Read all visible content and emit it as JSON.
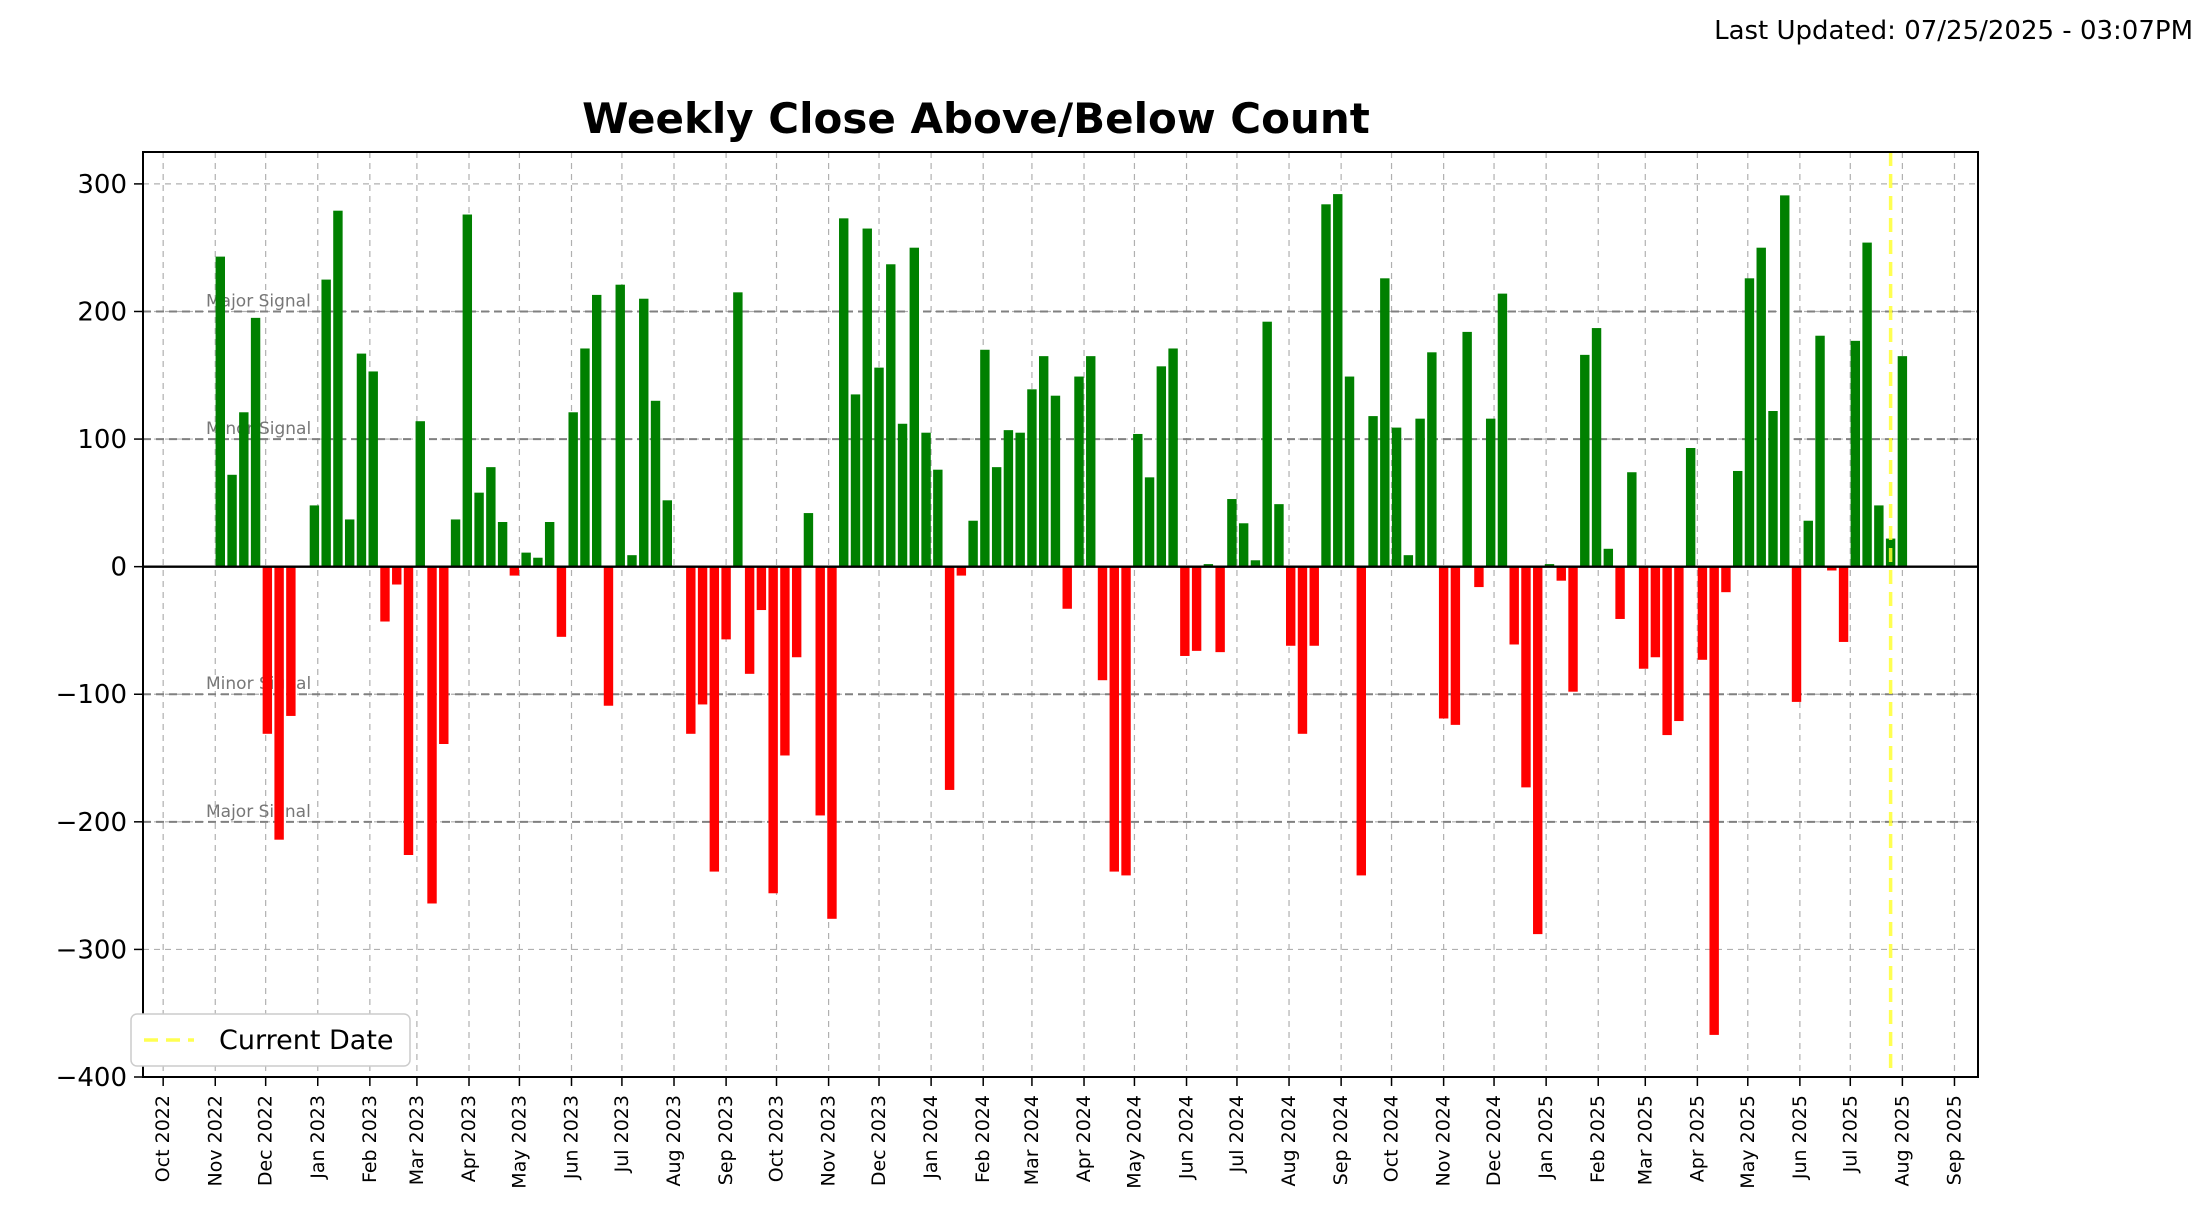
{
  "last_updated": "Last Updated: 07/25/2025 - 03:07PM",
  "chart_data": {
    "type": "bar",
    "title": "Weekly Close Above/Below Count",
    "xlabel": "",
    "ylabel": "",
    "ylim": [
      -400,
      325
    ],
    "y_ticks": [
      300,
      200,
      100,
      0,
      -100,
      -200,
      -300,
      -400
    ],
    "y_tick_labels": [
      "300",
      "200",
      "100",
      "0",
      "−100",
      "−200",
      "−300",
      "−400"
    ],
    "x_range": [
      "2022-09-19",
      "2025-09-15"
    ],
    "x_ticks": [
      "2022-10-01",
      "2022-11-01",
      "2022-12-01",
      "2023-01-01",
      "2023-02-01",
      "2023-03-01",
      "2023-04-01",
      "2023-05-01",
      "2023-06-01",
      "2023-07-01",
      "2023-08-01",
      "2023-09-01",
      "2023-10-01",
      "2023-11-01",
      "2023-12-01",
      "2024-01-01",
      "2024-02-01",
      "2024-03-01",
      "2024-04-01",
      "2024-05-01",
      "2024-06-01",
      "2024-07-01",
      "2024-08-01",
      "2024-09-01",
      "2024-10-01",
      "2024-11-01",
      "2024-12-01",
      "2025-01-01",
      "2025-02-01",
      "2025-03-01",
      "2025-04-01",
      "2025-05-01",
      "2025-06-01",
      "2025-07-01",
      "2025-08-01",
      "2025-09-01"
    ],
    "x_tick_labels": [
      "Oct 2022",
      "Nov 2022",
      "Dec 2022",
      "Jan 2023",
      "Feb 2023",
      "Mar 2023",
      "Apr 2023",
      "May 2023",
      "Jun 2023",
      "Jul 2023",
      "Aug 2023",
      "Sep 2023",
      "Oct 2023",
      "Nov 2023",
      "Dec 2023",
      "Jan 2024",
      "Feb 2024",
      "Mar 2024",
      "Apr 2024",
      "May 2024",
      "Jun 2024",
      "Jul 2024",
      "Aug 2024",
      "Sep 2024",
      "Oct 2024",
      "Nov 2024",
      "Dec 2024",
      "Jan 2025",
      "Feb 2025",
      "Mar 2025",
      "Apr 2025",
      "May 2025",
      "Jun 2025",
      "Jul 2025",
      "Aug 2025",
      "Sep 2025"
    ],
    "grid": true,
    "first_week": "2022-11-04",
    "week_step_days": 7,
    "values": [
      243,
      72,
      121,
      195,
      -131,
      -214,
      -117,
      0,
      48,
      225,
      279,
      37,
      167,
      153,
      -43,
      -14,
      -226,
      114,
      -264,
      -139,
      37,
      276,
      58,
      78,
      35,
      -7,
      11,
      7,
      35,
      -55,
      121,
      171,
      213,
      -109,
      221,
      9,
      210,
      130,
      52,
      0,
      -131,
      -108,
      -239,
      -57,
      215,
      -84,
      -34,
      -256,
      -148,
      -71,
      42,
      -195,
      -276,
      273,
      135,
      265,
      156,
      237,
      112,
      250,
      105,
      76,
      -175,
      -7,
      36,
      170,
      78,
      107,
      105,
      139,
      165,
      134,
      -33,
      149,
      165,
      -89,
      -239,
      -242,
      104,
      70,
      157,
      171,
      -70,
      -66,
      2,
      -67,
      53,
      34,
      5,
      192,
      49,
      -62,
      -131,
      -62,
      284,
      292,
      149,
      -242,
      118,
      226,
      109,
      9,
      116,
      168,
      -119,
      -124,
      184,
      -16,
      116,
      214,
      -61,
      -173,
      -288,
      2,
      -11,
      -98,
      166,
      187,
      14,
      -41,
      74,
      -80,
      -71,
      -132,
      -121,
      93,
      -73,
      -367,
      -20,
      75,
      226,
      250,
      122,
      291,
      -106,
      36,
      181,
      -3,
      -59,
      177,
      254,
      48,
      22,
      165
    ],
    "bar_colors": {
      "positive": "#008000",
      "negative": "#ff0000"
    },
    "reference_lines": [
      {
        "y": 200,
        "label": "Major Signal"
      },
      {
        "y": 100,
        "label": "Minor Signal"
      },
      {
        "y": -100,
        "label": "Minor Signal"
      },
      {
        "y": -200,
        "label": "Major Signal"
      }
    ],
    "current_date": "2025-07-25",
    "current_date_color": "#ffff33",
    "legend": {
      "entries": [
        "Current Date"
      ],
      "placement": "lower-left"
    }
  }
}
